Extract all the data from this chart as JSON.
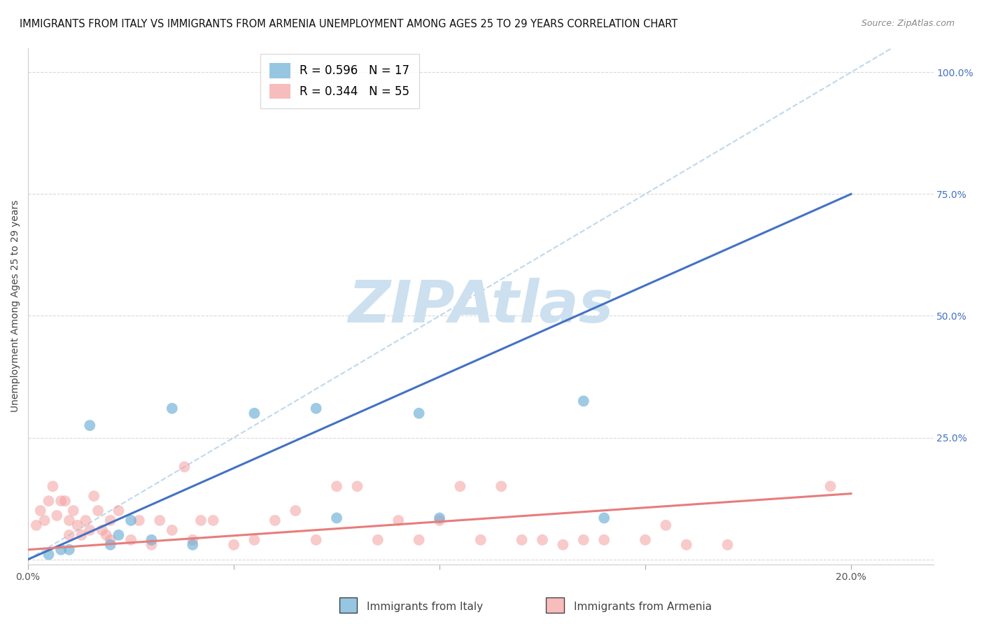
{
  "title": "IMMIGRANTS FROM ITALY VS IMMIGRANTS FROM ARMENIA UNEMPLOYMENT AMONG AGES 25 TO 29 YEARS CORRELATION CHART",
  "source": "Source: ZipAtlas.com",
  "ylabel_left": "Unemployment Among Ages 25 to 29 years",
  "ylabel_right_ticks": [
    0.0,
    0.25,
    0.5,
    0.75,
    1.0
  ],
  "ylabel_right_labels": [
    "",
    "25.0%",
    "50.0%",
    "75.0%",
    "100.0%"
  ],
  "xaxis_ticks": [
    0.0,
    0.05,
    0.1,
    0.15,
    0.2
  ],
  "xaxis_labels": [
    "0.0%",
    "",
    "",
    "",
    "20.0%"
  ],
  "xlim": [
    0.0,
    0.22
  ],
  "ylim": [
    -0.01,
    1.05
  ],
  "italy_color": "#6baed6",
  "armenia_color": "#f4a0a0",
  "italy_line_color": "#4472c4",
  "armenia_line_color": "#e87c7c",
  "italy_R": 0.596,
  "italy_N": 17,
  "armenia_R": 0.344,
  "armenia_N": 55,
  "italy_scatter_x": [
    0.005,
    0.008,
    0.01,
    0.015,
    0.02,
    0.022,
    0.025,
    0.03,
    0.035,
    0.04,
    0.055,
    0.07,
    0.075,
    0.095,
    0.1,
    0.135,
    0.14
  ],
  "italy_scatter_y": [
    0.01,
    0.02,
    0.02,
    0.275,
    0.03,
    0.05,
    0.08,
    0.04,
    0.31,
    0.03,
    0.3,
    0.31,
    0.085,
    0.3,
    0.085,
    0.325,
    0.085
  ],
  "armenia_scatter_x": [
    0.002,
    0.003,
    0.004,
    0.005,
    0.006,
    0.007,
    0.008,
    0.009,
    0.01,
    0.01,
    0.011,
    0.012,
    0.013,
    0.014,
    0.015,
    0.016,
    0.017,
    0.018,
    0.019,
    0.02,
    0.02,
    0.022,
    0.025,
    0.027,
    0.03,
    0.032,
    0.035,
    0.038,
    0.04,
    0.042,
    0.045,
    0.05,
    0.055,
    0.06,
    0.065,
    0.07,
    0.075,
    0.08,
    0.085,
    0.09,
    0.095,
    0.1,
    0.105,
    0.11,
    0.115,
    0.12,
    0.125,
    0.13,
    0.135,
    0.14,
    0.15,
    0.155,
    0.16,
    0.17,
    0.195
  ],
  "armenia_scatter_y": [
    0.07,
    0.1,
    0.08,
    0.12,
    0.15,
    0.09,
    0.12,
    0.12,
    0.05,
    0.08,
    0.1,
    0.07,
    0.05,
    0.08,
    0.06,
    0.13,
    0.1,
    0.06,
    0.05,
    0.04,
    0.08,
    0.1,
    0.04,
    0.08,
    0.03,
    0.08,
    0.06,
    0.19,
    0.04,
    0.08,
    0.08,
    0.03,
    0.04,
    0.08,
    0.1,
    0.04,
    0.15,
    0.15,
    0.04,
    0.08,
    0.04,
    0.08,
    0.15,
    0.04,
    0.15,
    0.04,
    0.04,
    0.03,
    0.04,
    0.04,
    0.04,
    0.07,
    0.03,
    0.03,
    0.15
  ],
  "italy_trend_x": [
    0.0,
    0.2
  ],
  "italy_trend_y": [
    0.0,
    0.75
  ],
  "armenia_trend_x": [
    0.0,
    0.2
  ],
  "armenia_trend_y": [
    0.02,
    0.135
  ],
  "ref_line_color": "#b8d4eb",
  "background_color": "#ffffff",
  "grid_color": "#d0d0d0",
  "title_fontsize": 10.5,
  "source_fontsize": 9,
  "axis_label_fontsize": 10,
  "tick_fontsize": 10,
  "legend_fontsize": 12,
  "marker_size": 130,
  "italy_label": "Immigrants from Italy",
  "armenia_label": "Immigrants from Armenia",
  "watermark_text": "ZIPAtlas",
  "watermark_color": "#cce0f0",
  "watermark_fontsize": 60
}
